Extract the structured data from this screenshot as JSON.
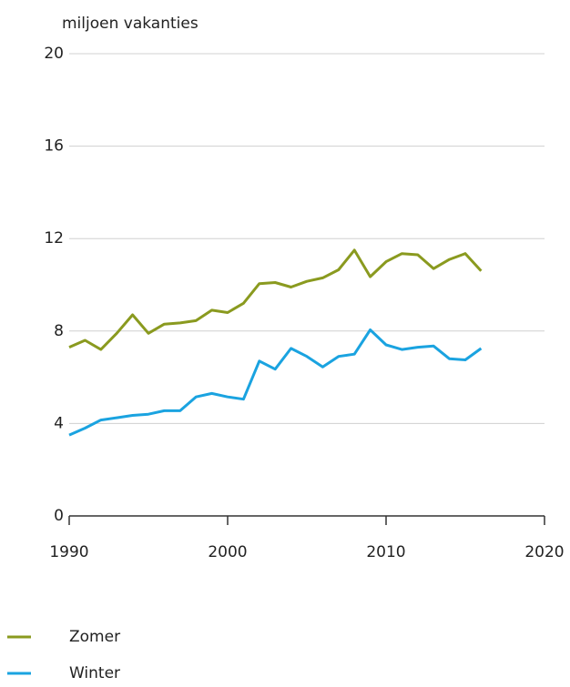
{
  "chart_data": {
    "type": "line",
    "y_label": "miljoen vakanties",
    "x": [
      1990,
      1991,
      1992,
      1993,
      1994,
      1995,
      1996,
      1997,
      1998,
      1999,
      2000,
      2001,
      2002,
      2003,
      2004,
      2005,
      2006,
      2007,
      2008,
      2009,
      2010,
      2011,
      2012,
      2013,
      2014,
      2015,
      2016
    ],
    "series": [
      {
        "name": "Zomer",
        "color": "#8a9a1f",
        "values": [
          7.3,
          7.6,
          7.2,
          7.9,
          8.7,
          7.9,
          8.3,
          8.35,
          8.45,
          8.9,
          8.8,
          9.2,
          10.05,
          10.1,
          9.9,
          10.15,
          10.3,
          10.65,
          11.5,
          10.35,
          11.0,
          11.35,
          11.3,
          10.7,
          11.1,
          11.35,
          10.6
        ]
      },
      {
        "name": "Winter",
        "color": "#1aa3e0",
        "values": [
          3.5,
          3.8,
          4.15,
          4.25,
          4.35,
          4.4,
          4.55,
          4.55,
          5.15,
          5.3,
          5.15,
          5.05,
          6.7,
          6.35,
          7.25,
          6.9,
          6.45,
          6.9,
          7.0,
          8.05,
          7.4,
          7.2,
          7.3,
          7.35,
          6.8,
          6.75,
          7.25
        ]
      }
    ],
    "xlim": [
      1990,
      2020
    ],
    "xticks": [
      1990,
      2000,
      2010,
      2020
    ],
    "ylim": [
      0,
      20
    ],
    "yticks": [
      0,
      4,
      8,
      12,
      16,
      20
    ],
    "grid": true,
    "legend": "bottom"
  }
}
